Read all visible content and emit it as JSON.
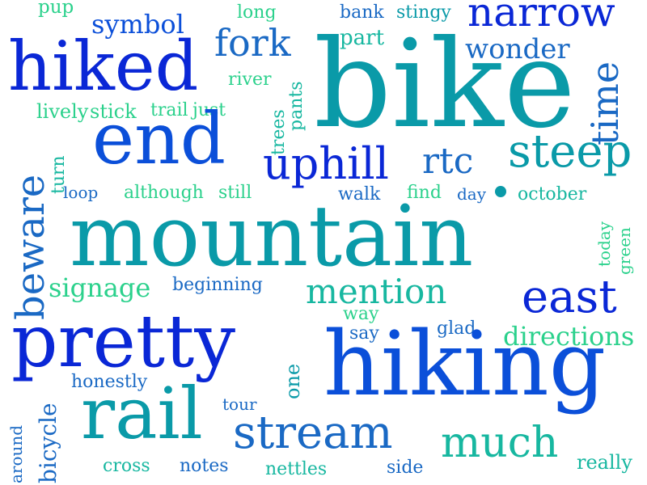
{
  "colors": {
    "deep_blue": "#0a27d6",
    "royal_blue": "#0b4fd9",
    "steel_blue": "#1a69c4",
    "teal": "#0a9aa8",
    "sea_green": "#17b7a0",
    "light_green": "#2bd18c",
    "background": "#ffffff"
  },
  "words": {
    "pup": "pup",
    "long": "long",
    "bank": "bank",
    "stingy": "stingy",
    "narrow": "narrow",
    "symbol": "symbol",
    "fork": "fork",
    "part": "part",
    "wonder": "wonder",
    "hiked": "hiked",
    "bike": "bike",
    "time": "time",
    "river": "river",
    "pants": "pants",
    "trees": "trees",
    "lively": "lively",
    "stick": "stick",
    "trail": "trail",
    "just": "just",
    "end": "end",
    "uphill": "uphill",
    "rtc": "rtc",
    "steep": "steep",
    "beware": "beware",
    "turn": "turn",
    "loop": "loop",
    "although": "although",
    "still": "still",
    "walk": "walk",
    "find": "find",
    "day": "day",
    "october": "october",
    "mountain": "mountain",
    "today": "today",
    "green": "green",
    "signage": "signage",
    "beginning": "beginning",
    "mention": "mention",
    "east": "east",
    "pretty": "pretty",
    "way": "way",
    "say": "say",
    "glad": "glad",
    "directions": "directions",
    "hiking": "hiking",
    "honestly": "honestly",
    "bicycle": "bicycle",
    "around": "around",
    "rail": "rail",
    "tour": "tour",
    "one": "one",
    "stream": "stream",
    "much": "much",
    "cross": "cross",
    "notes": "notes",
    "nettles": "nettles",
    "side": "side",
    "really": "really"
  }
}
